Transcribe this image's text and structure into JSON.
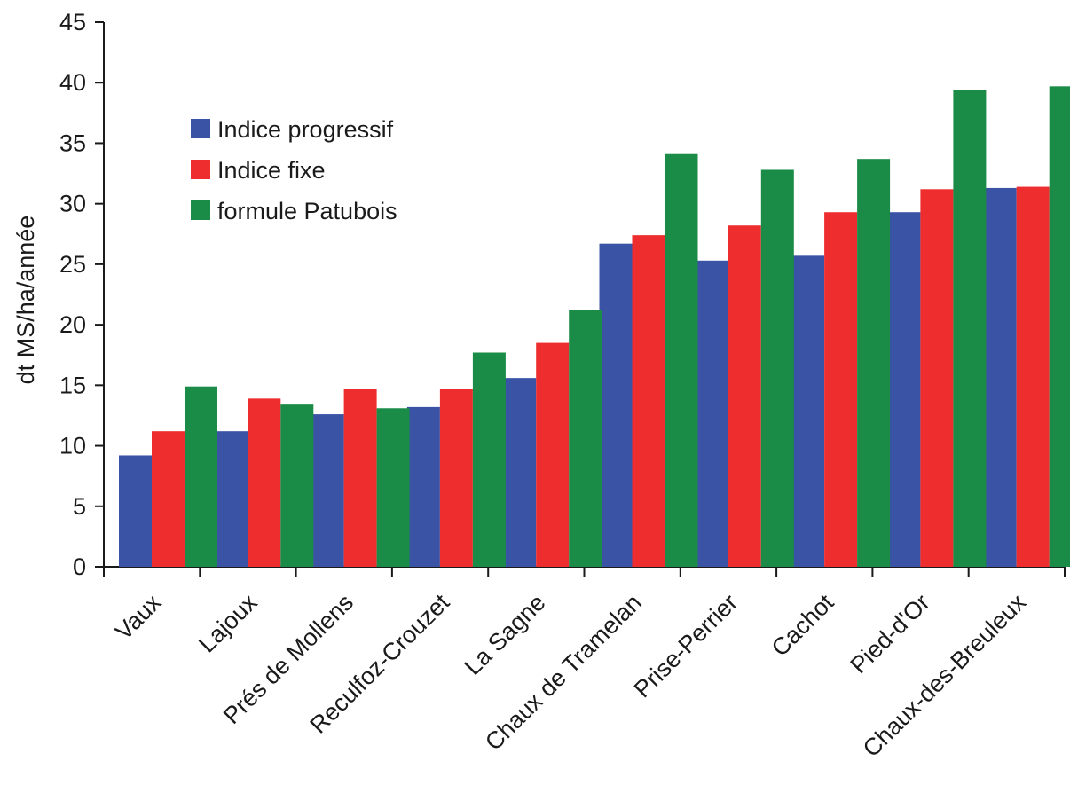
{
  "chart_data": {
    "type": "bar",
    "title": "",
    "xlabel": "",
    "ylabel": "dt MS/ha/année",
    "ylim": [
      0,
      45
    ],
    "yticks": [
      "0",
      "5",
      "10",
      "15",
      "20",
      "25",
      "30",
      "35",
      "40",
      "45"
    ],
    "grid": false,
    "legend_position": "top-left",
    "categories": [
      "Vaux",
      "Lajoux",
      "Prés de Mollens",
      "Reculfoz-Crouzet",
      "La Sagne",
      "Chaux de Tramelan",
      "Prise-Perrier",
      "Cachot",
      "Pied-d'Or",
      "Chaux-des-Breuleux"
    ],
    "series": [
      {
        "name": "Indice progressif",
        "color": "#3a53a4",
        "values": [
          9.2,
          11.2,
          12.6,
          13.2,
          15.6,
          26.7,
          25.3,
          25.7,
          29.3,
          31.3
        ]
      },
      {
        "name": "Indice fixe",
        "color": "#ee2e2e",
        "values": [
          11.2,
          13.9,
          14.7,
          14.7,
          18.5,
          27.4,
          28.2,
          29.3,
          31.2,
          31.4
        ]
      },
      {
        "name": "formule Patubois",
        "color": "#1a8c47",
        "values": [
          14.9,
          13.4,
          13.1,
          17.7,
          21.2,
          34.1,
          32.8,
          33.7,
          39.4,
          39.7
        ]
      }
    ]
  }
}
